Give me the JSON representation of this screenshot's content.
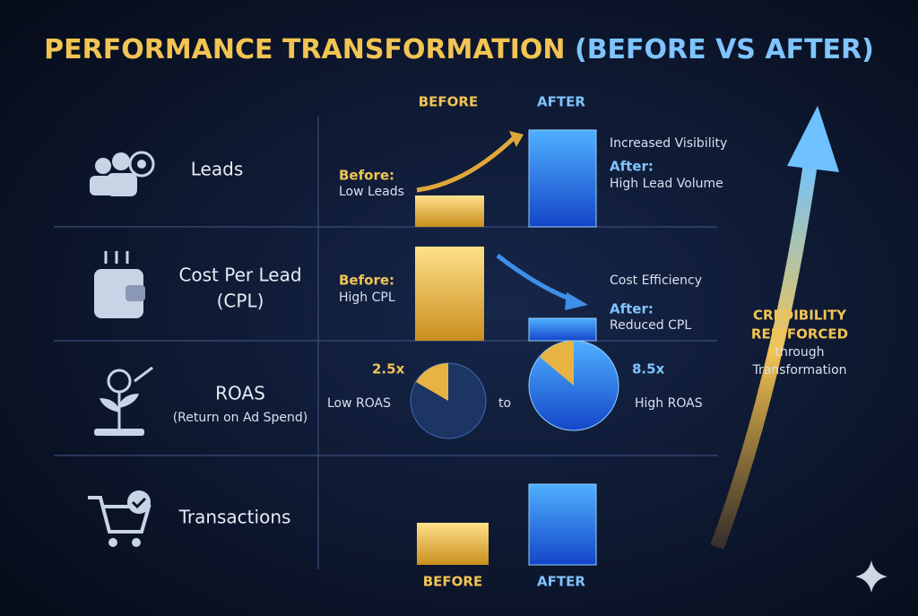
{
  "title": {
    "main": "PERFORMANCE TRANSFORMATION",
    "suffix": "(BEFORE VS AFTER)"
  },
  "columns": {
    "before": "BEFORE",
    "after": "AFTER"
  },
  "rows": [
    {
      "label": "Leads",
      "before_heading": "Before:",
      "before_text": "Low Leads",
      "note": "Increased Visibility",
      "after_heading": "After:",
      "after_text": "High Lead Volume"
    },
    {
      "label": "Cost Per Lead",
      "label_sub": "(CPL)",
      "before_heading": "Before:",
      "before_text": "High CPL",
      "note": "Cost Efficiency",
      "after_heading": "After:",
      "after_text": "Reduced CPL"
    },
    {
      "label": "ROAS",
      "label_sub": "(Return on Ad Spend)",
      "before_value": "2.5x",
      "before_text": "Low ROAS",
      "connector": "to",
      "after_value": "8.5x",
      "after_text": "High ROAS"
    },
    {
      "label": "Transactions"
    }
  ],
  "side": {
    "line1": "CREDIBILITY",
    "line2": "REINFORCED",
    "line3": "through",
    "line4": "Transformation"
  }
}
